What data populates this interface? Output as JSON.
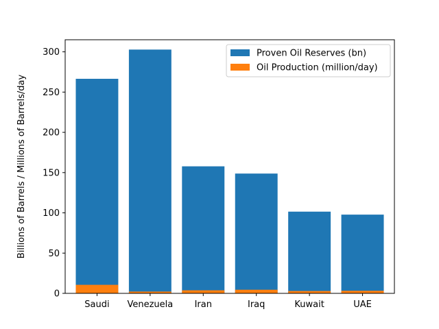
{
  "chart_data": {
    "type": "bar",
    "stacked_overlay": true,
    "title": "",
    "xlabel": "",
    "ylabel": "Billions of Barrels / Millions of Barrels/day",
    "ylim": [
      0,
      315
    ],
    "yticks": [
      0,
      50,
      100,
      150,
      200,
      250,
      300
    ],
    "categories": [
      "Saudi",
      "Venezuela",
      "Iran",
      "Iraq",
      "Kuwait",
      "UAE"
    ],
    "series": [
      {
        "name": "Proven Oil Reserves (bn)",
        "color": "#1f77b4",
        "values": [
          266.5,
          302.8,
          157.8,
          148.8,
          101.5,
          97.8
        ]
      },
      {
        "name": "Oil Production (million/day)",
        "color": "#ff7f0e",
        "values": [
          10.6,
          2.2,
          3.8,
          4.5,
          2.9,
          3.2
        ]
      }
    ],
    "grid": false,
    "legend_position": "upper right"
  }
}
